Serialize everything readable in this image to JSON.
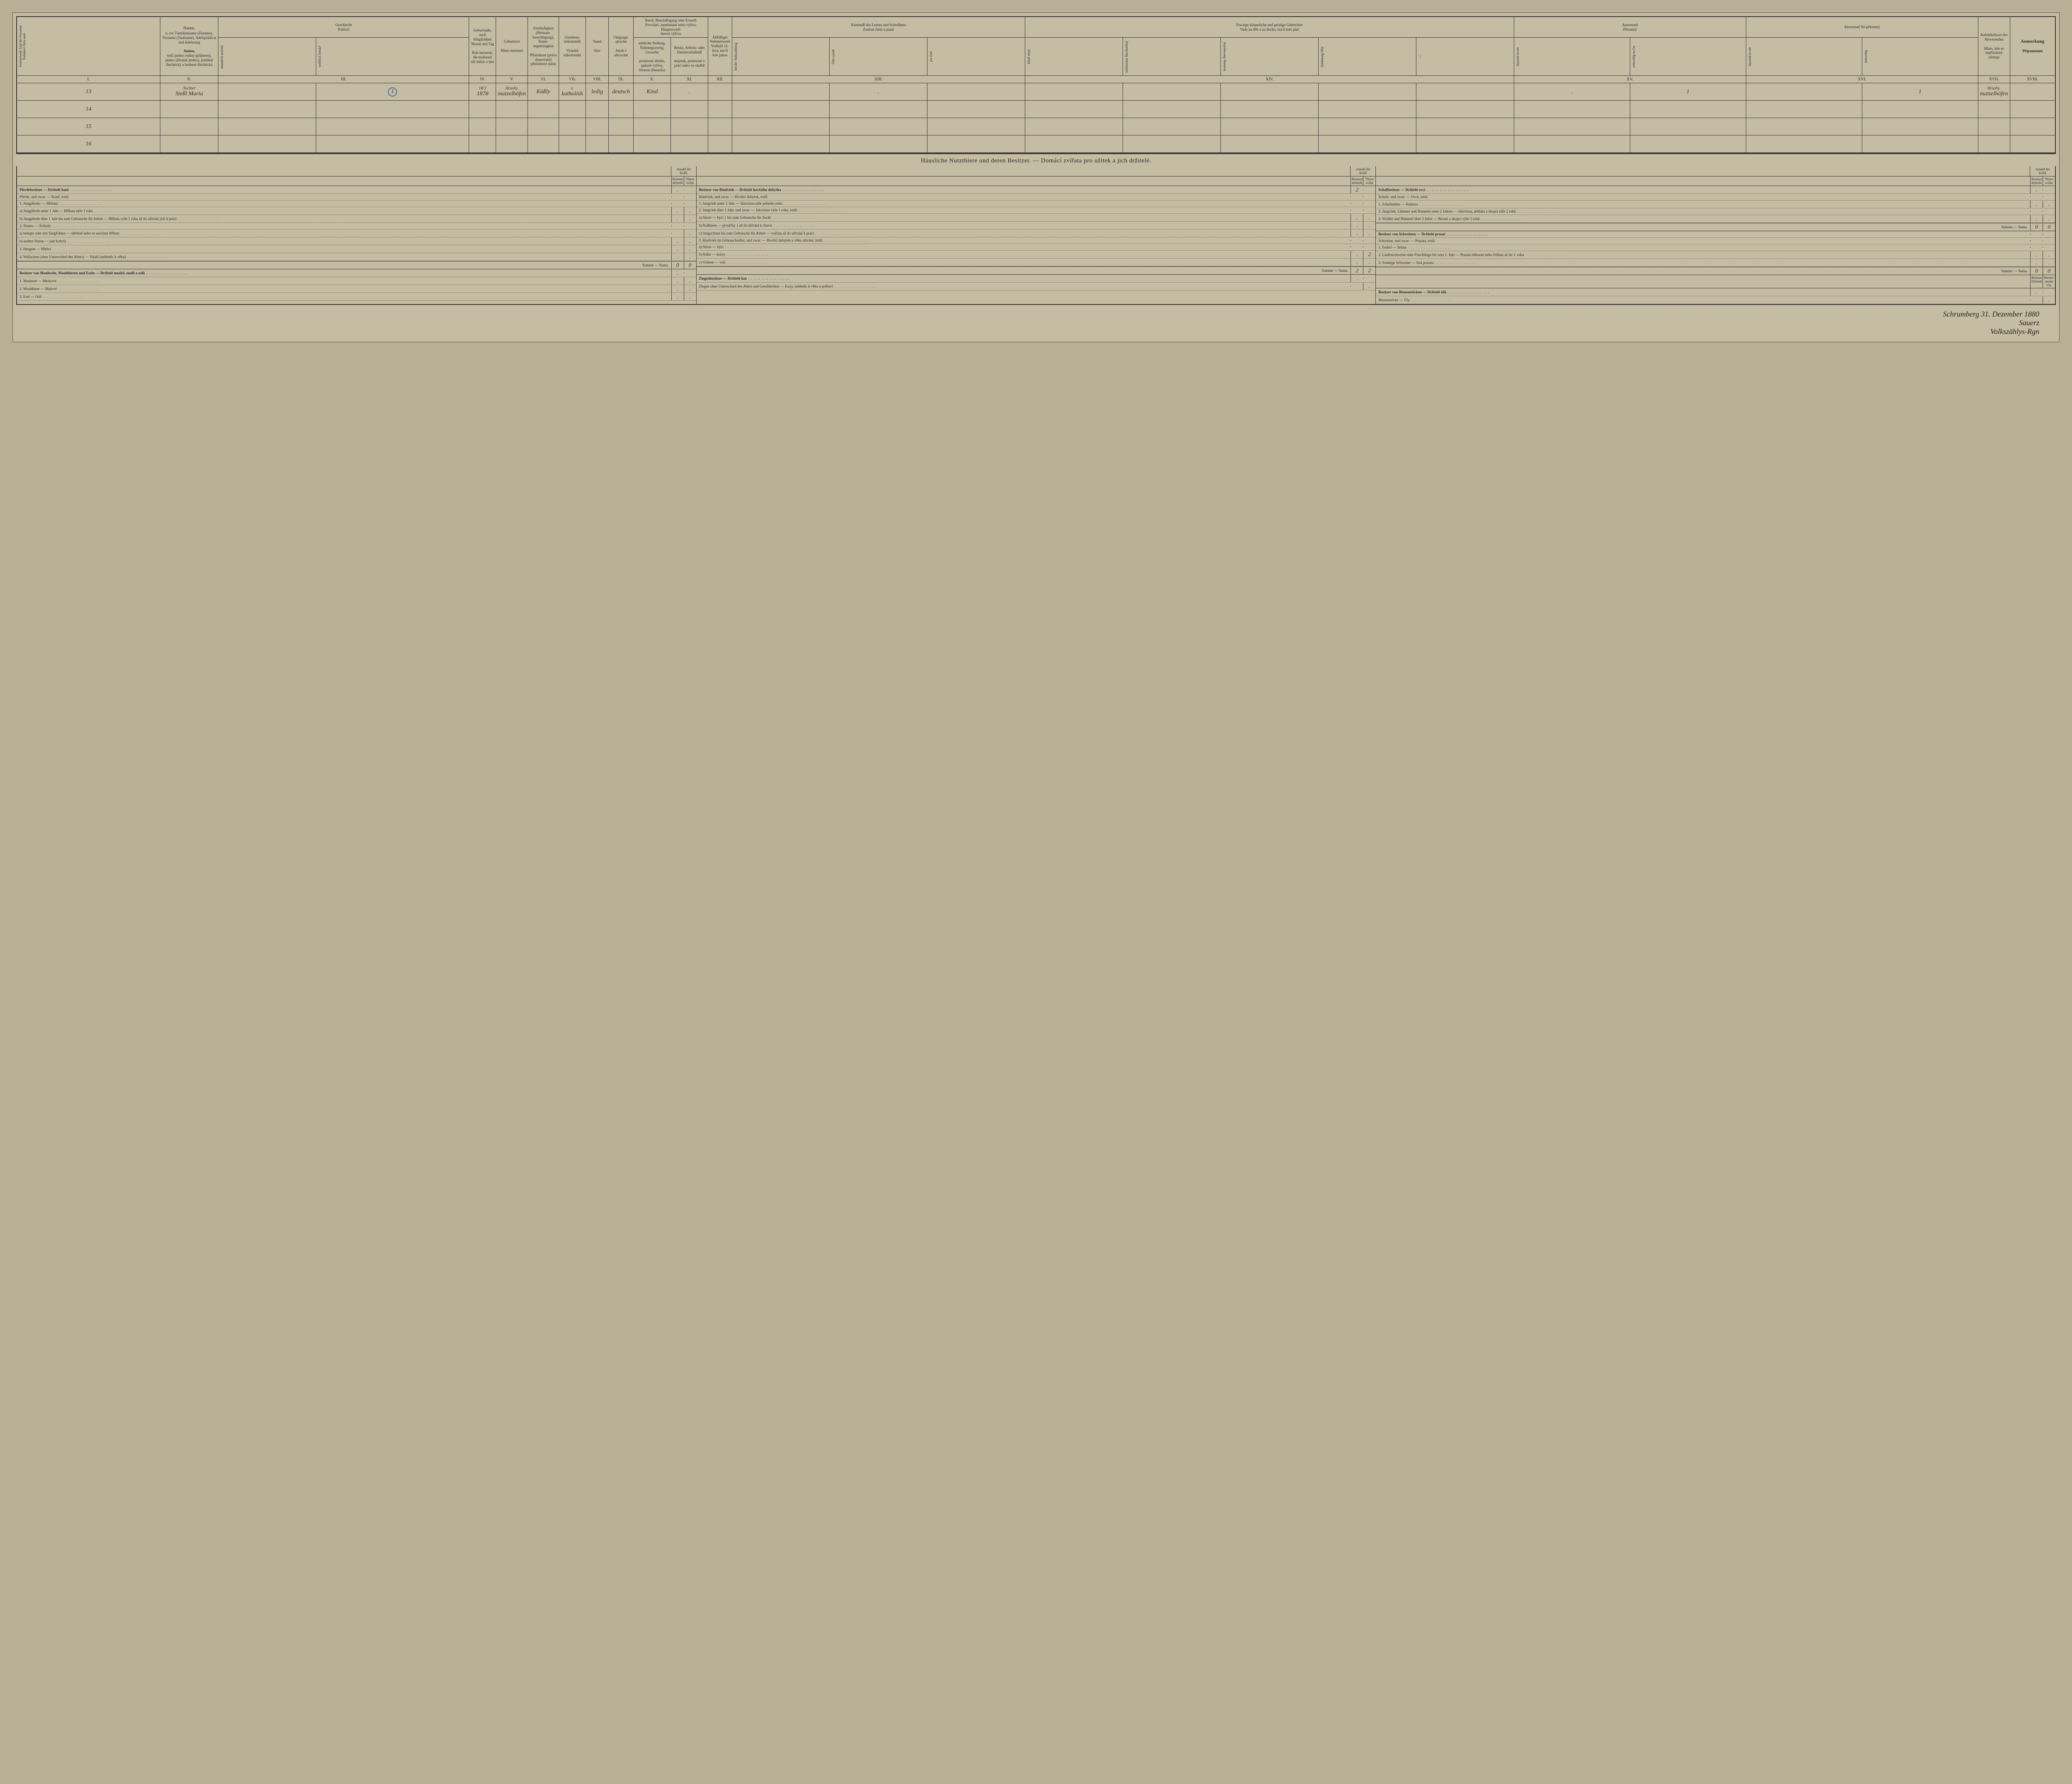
{
  "columns": {
    "I": {
      "de": "Fortlaufende Zahl der Personen",
      "cz": "Pořadové číslo osob"
    },
    "II": {
      "title": "Name,",
      "de": "u. zw. Familienname (Zuname), Vorname (Taufname), Adelsprädicat und Adelsrang",
      "cz_title": "Jméno,",
      "cz": "totiž jméno rodiny (příjmení), jméno (křestné jméno), predikát šlechtický a hodnost šlechtická"
    },
    "III": {
      "de": "Geschlecht",
      "cz": "Pohlaví",
      "sub_m_de": "männlich",
      "sub_m_cz": "mužské",
      "sub_f_de": "weiblich",
      "sub_f_cz": "ženské"
    },
    "IV": {
      "de": "Geburtsjahr, nach Möglichkeit Monat und Tag",
      "cz": "Rok narození, dle možnosti též měsíc a den"
    },
    "V": {
      "de": "Geburtsort",
      "cz": "Místo narození"
    },
    "VI": {
      "de": "Zuständigkeit (Heimats-berechtigung), Staats-angehörigkeit",
      "cz": "Příslušnost (právo domovské) příslušnost státní"
    },
    "VII": {
      "de": "Glaubens-bekenntniß",
      "cz": "Vyznání náboženské"
    },
    "VIII": {
      "de": "Stand",
      "cz": "Stav"
    },
    "IX": {
      "de": "Umgangs-sprache",
      "cz": "Jazyk v obcování"
    },
    "X_XI": {
      "de": "Beruf, Beschäftigung oder Erwerb",
      "cz": "Povolání, zaměstnání nebo výživa",
      "sub_de": "Haupterwerb",
      "sub_cz": "hlavní výživa"
    },
    "X": {
      "de": "amtliche Stellung, Nahrungszweig, Gewerbe",
      "cz": "postavení úřední, způsob výživy, živnost (řemeslo)"
    },
    "XI": {
      "de": "Besitz, Arbeits- oder Dienstverhältniß",
      "cz": "majetek, postavení v práci nebo ve službě"
    },
    "XII": {
      "de": "Allfälliger Nebenerwerb",
      "cz": "Vedlejší vý-živa, má-li kdo jakou"
    },
    "XIII": {
      "de": "Kenntniß des Lesens und Schreibens",
      "cz": "Znalost čtení a psaní"
    },
    "XIV": {
      "de": "Etwaige körperliche und geistige Gebrechen",
      "cz": "Vady na těle a na duchu, má-li kdo jaké"
    },
    "XV": {
      "de": "Anwesend",
      "cz": "Přítomný"
    },
    "XVI": {
      "de": "Abwesend Ne-přítomný"
    },
    "XVII": {
      "de": "Aufenthaltsort des Abwesenden",
      "cz": "Místo, kde se nepřítomný zdržuje"
    },
    "XVIII": {
      "de": "Anmerkung",
      "cz": "Připomenutí"
    }
  },
  "romans": [
    "I.",
    "II.",
    "III.",
    "IV.",
    "V.",
    "VI.",
    "VII.",
    "VIII.",
    "IX.",
    "X.",
    "XI.",
    "XII.",
    "XIII.",
    "XIV.",
    "XV.",
    "XVI.",
    "XVII.",
    "XVIII."
  ],
  "rows": [
    {
      "num": "13",
      "name_top": "Tochter",
      "name": "Steßl  Maria",
      "sex_m": "",
      "sex_f": "1",
      "birth_top": "18/2",
      "birth": "1878",
      "birthplace_top": "Hrushy.",
      "birthplace": "matzelhöfen",
      "zust": "Küßly",
      "relig_top": "v.",
      "relig": "katholish",
      "stand": "ledig",
      "lang": "deutsch",
      "beruf": "Kind",
      "besitz": ".",
      "neben": "",
      "lesen": ".",
      "gebr": "",
      "anw1": ".",
      "anw2": "1",
      "abw1": "",
      "abw2": "1",
      "ort_top": "Hrushy.",
      "ort": "matzelhöfen",
      "anm": ""
    },
    {
      "num": "14"
    },
    {
      "num": "15"
    },
    {
      "num": "16"
    }
  ],
  "section_title": "Häusliche Nutzthiere und deren Besitzer. — Domácí zvířata pro užitek a jich držitelé.",
  "mini_hdr": {
    "anzahl": "Anzahl der",
    "kolik": "Kolik",
    "besitzer": "Besitzer držitelů",
    "thiere": "Thiere zvířat"
  },
  "col1": {
    "items": [
      {
        "txt": "Pferdebesitzer — Držitelé koní",
        "bold": true,
        "v1": ".",
        "v2": ""
      },
      {
        "txt": "Pferde, und zwar: — Koně, totiž:",
        "sub": true
      },
      {
        "txt": "1. Jungpferde: — Hříbata:"
      },
      {
        "txt": "a) Jungpferde unter 1 Jahr — Hříbata níže 1 roku",
        "v1": ".",
        "v2": "."
      },
      {
        "txt": "b) Jungpferde über 1 Jahr bis zum Gebrauche für Arbeit — Hříbata výše 1 roku až do užívání jich k práci",
        "v1": ".",
        "v2": "."
      },
      {
        "txt": "2. Stuten: — Kobyly:"
      },
      {
        "txt": "a) belegte oder mit Saugfohlen — skřebné nebo se ssavými hříbaty",
        "v1": "",
        "v2": "."
      },
      {
        "txt": "b) andere Stuten — jiné kobyly",
        "v1": ".",
        "v2": "."
      },
      {
        "txt": "3. Hengste — Hřebci",
        "v1": ".",
        "v2": "."
      },
      {
        "txt": "4. Wallachen (ohne Unterschied des Alters) — Valaši (nehledíc k věku)",
        "v1": ".",
        "v2": "."
      },
      {
        "txt": "Summe — Suma.",
        "sum": true,
        "v1": "0",
        "v2": "0"
      },
      {
        "txt": "Besitzer von Mauleseln, Maulthieren und Eseln — Držitelé mezků, mulů a oslů",
        "bold": true,
        "v1": ".",
        "v2": ""
      },
      {
        "txt": "1. Maulesel — Mezkové",
        "v1": ".",
        "v2": "."
      },
      {
        "txt": "2. Maulthiere — Mulové",
        "v1": ".",
        "v2": "."
      },
      {
        "txt": "3. Esel — Osli",
        "v1": ".",
        "v2": "."
      }
    ]
  },
  "col2": {
    "items": [
      {
        "txt": "Besitzer von Rindvieh — Držitelé hovězího dobytka",
        "bold": true,
        "v1": "2",
        "v2": ""
      },
      {
        "txt": "Rindvieh, und zwar: — Hovězí dobytek, totiž:",
        "sub": true
      },
      {
        "txt": "1. Jungvieh unter 1 Jahr — Jalovizna níže jednoho roku",
        "v1": "",
        "v2": ""
      },
      {
        "txt": "2. Jungvieh über 1 Jahr, und zwar: — Jalovizna výše 1 roku, totiž:"
      },
      {
        "txt": "a) Stiere — býci  } bis zum Gebrauche für Zucht",
        "v1": ".",
        "v2": "."
      },
      {
        "txt": "b) Kalbinen — prvničky } až do užívání k chovu",
        "v1": ".",
        "v2": "."
      },
      {
        "txt": "c) Jungochsen bis zum Gebrauche für Arbeit — volčata až do užívání k práci",
        "v1": ".",
        "v2": "."
      },
      {
        "txt": "3. Rindvieh im Gebrauchsalter, und zwar: — Hovězí dobytek u věku užívání, totiž:"
      },
      {
        "txt": "a) Stiere — býci",
        "v1": "",
        "v2": ""
      },
      {
        "txt": "b) Kühe — krávy",
        "v1": ".",
        "v2": "2"
      },
      {
        "txt": "c) Ochsen — voli",
        "v1": ".",
        "v2": "."
      },
      {
        "txt": "Summe — Suma.",
        "sum": true,
        "v1": "2",
        "v2": "2"
      },
      {
        "txt": "Ziegenbesitzer — Držitelé koz",
        "bold": true,
        "v1": ".",
        "v2": ""
      },
      {
        "txt": "Ziegen ohne Unterschied des Alters und Geschlechtes — Kozy, nehledíc k věku a pohlaví",
        "v1": "",
        "v2": "."
      }
    ]
  },
  "col3": {
    "items": [
      {
        "txt": "Schafbesitzer — Držitelé ovcí",
        "bold": true,
        "v1": ".",
        "v2": ""
      },
      {
        "txt": "Schafe, und zwar: — Ovce, totiž:",
        "sub": true
      },
      {
        "txt": "1. Schafmütter — Bahnice",
        "v1": ".",
        "v2": "."
      },
      {
        "txt": "2. Jungvieh, Lämmer und Hammel unter 2 Jahren — Jalovizna, jehňata a skopci níže 2 roků",
        "v1": "",
        "v2": ""
      },
      {
        "txt": "3. Widder und Hammel über 2 Jahre — Berani a skopci výše 2 roků",
        "v1": ".",
        "v2": "."
      },
      {
        "txt": "Summe — Suma.",
        "sum": true,
        "v1": "0",
        "v2": "0"
      },
      {
        "txt": "Besitzer von Schweinen — Držitelé prasat",
        "bold": true,
        "v1": "",
        "v2": ""
      },
      {
        "txt": "Schweine, und zwar: — Prasata, totiž:",
        "sub": true
      },
      {
        "txt": "1. Ferkel — Selata",
        "v1": "",
        "v2": ""
      },
      {
        "txt": "2. Läuferschweine oder Frischlinge bis zum 1. Jahr — Prasata běhouní nebo frišlata až do 1. roku",
        "v1": ".",
        "v2": "."
      },
      {
        "txt": "3. Sonstige Schweine — Jiná prasata",
        "v1": ".",
        "v2": "."
      },
      {
        "txt": "Summe — Suma.",
        "sum": true,
        "v1": "0",
        "v2": "0"
      },
      {
        "txt": "",
        "hdr2": true
      },
      {
        "txt": "Besitzer von Bienenstöcken — Držitelé úlů",
        "bold": true,
        "v1": ".",
        "v2": ""
      },
      {
        "txt": "Bienenstöcke — Úly",
        "v1": "",
        "v2": "."
      }
    ]
  },
  "col3_hdr2": {
    "left": "Besitzer Držitelé",
    "right": "Bienen-stöcke Úly"
  },
  "signature": {
    "line1": "Schrumberg 31. Dezember 1880",
    "line2": "Sauerz",
    "line3": "Volkszählys-Rgn"
  }
}
